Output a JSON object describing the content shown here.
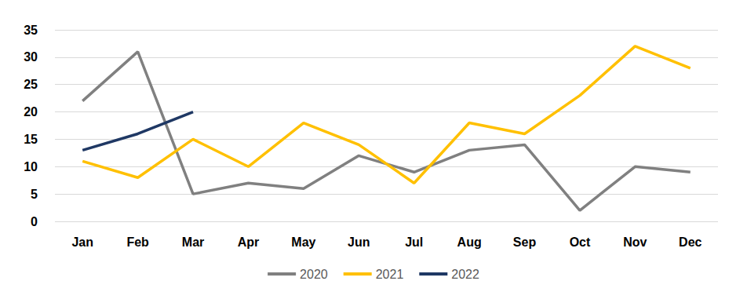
{
  "chart_data": {
    "type": "line",
    "categories": [
      "Jan",
      "Feb",
      "Mar",
      "Apr",
      "May",
      "Jun",
      "Jul",
      "Aug",
      "Sep",
      "Oct",
      "Nov",
      "Dec"
    ],
    "series": [
      {
        "name": "2020",
        "color": "#808080",
        "values": [
          22,
          31,
          5,
          7,
          6,
          12,
          9,
          13,
          14,
          2,
          10,
          9
        ]
      },
      {
        "name": "2021",
        "color": "#FFC000",
        "values": [
          11,
          8,
          15,
          10,
          18,
          14,
          7,
          18,
          16,
          23,
          32,
          28
        ]
      },
      {
        "name": "2022",
        "color": "#1F3864",
        "values": [
          13,
          16,
          20,
          null,
          null,
          null,
          null,
          null,
          null,
          null,
          null,
          null
        ]
      }
    ],
    "ylim": [
      0,
      35
    ],
    "yticks": [
      0,
      5,
      10,
      15,
      20,
      25,
      30,
      35
    ],
    "grid": true,
    "legend": "bottom"
  }
}
